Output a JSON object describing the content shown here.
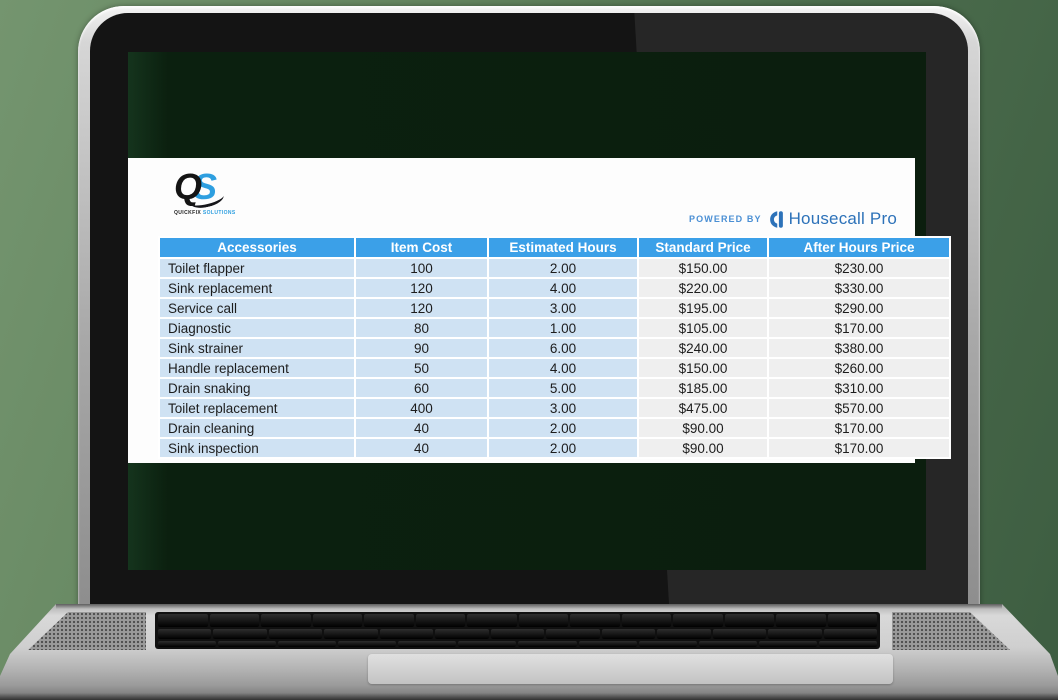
{
  "screen": {
    "logo": {
      "q": "Q",
      "s": "S",
      "tagline_left": "QUICKFIX",
      "tagline_right": "SOLUTIONS"
    },
    "powered_by": {
      "label": "POWERED BY",
      "brand": "Housecall Pro"
    },
    "table": {
      "headers": [
        "Accessories",
        "Item Cost",
        "Estimated Hours",
        "Standard Price",
        "After Hours Price"
      ],
      "rows": [
        [
          "Toilet flapper",
          "100",
          "2.00",
          "$150.00",
          "$230.00"
        ],
        [
          "Sink replacement",
          "120",
          "4.00",
          "$220.00",
          "$330.00"
        ],
        [
          "Service call",
          "120",
          "3.00",
          "$195.00",
          "$290.00"
        ],
        [
          "Diagnostic",
          "80",
          "1.00",
          "$105.00",
          "$170.00"
        ],
        [
          "Sink strainer",
          "90",
          "6.00",
          "$240.00",
          "$380.00"
        ],
        [
          "Handle replacement",
          "50",
          "4.00",
          "$150.00",
          "$260.00"
        ],
        [
          "Drain snaking",
          "60",
          "5.00",
          "$185.00",
          "$310.00"
        ],
        [
          "Toilet replacement",
          "400",
          "3.00",
          "$475.00",
          "$570.00"
        ],
        [
          "Drain cleaning",
          "40",
          "2.00",
          "$90.00",
          "$170.00"
        ],
        [
          "Sink inspection",
          "40",
          "2.00",
          "$90.00",
          "$170.00"
        ]
      ]
    },
    "colors": {
      "header_blue": "#3ba0e8",
      "cell_light_blue": "#cfe2f3",
      "cell_light_gray": "#efefef",
      "brand_blue": "#2d72b9",
      "logo_blue": "#2e9fe0"
    }
  }
}
